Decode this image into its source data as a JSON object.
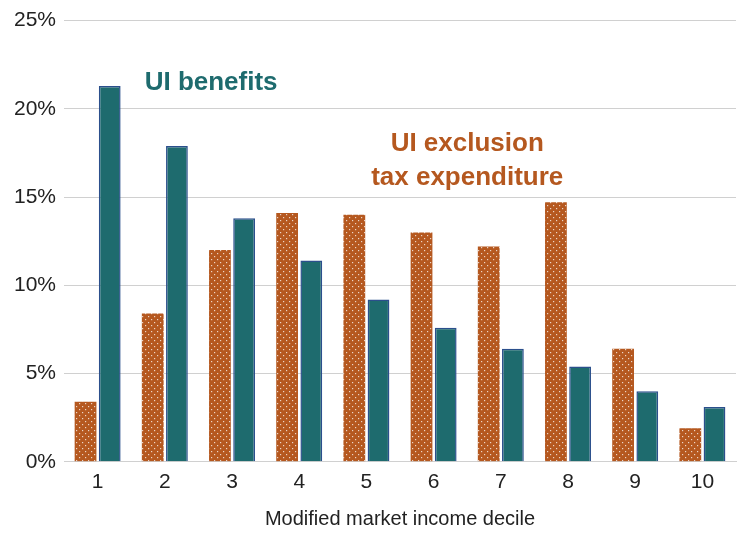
{
  "chart_data": {
    "type": "bar",
    "x_label": "Modified market income decile",
    "categories": [
      "1",
      "2",
      "3",
      "4",
      "5",
      "6",
      "7",
      "8",
      "9",
      "10"
    ],
    "series": [
      {
        "name": "UI exclusion tax expenditure",
        "color": "#b5581f",
        "marker": "dotted",
        "values": [
          3.4,
          8.4,
          12.0,
          14.1,
          14.0,
          13.0,
          12.2,
          14.7,
          6.4,
          1.9
        ]
      },
      {
        "name": "UI benefits",
        "color": "#1e6b6e",
        "values": [
          21.3,
          17.9,
          13.8,
          11.4,
          9.2,
          7.6,
          6.4,
          5.4,
          4.0,
          3.1
        ]
      }
    ],
    "ylim": [
      0,
      25
    ],
    "yticks": [
      {
        "value": 0,
        "label": "0%"
      },
      {
        "value": 5,
        "label": "5%"
      },
      {
        "value": 10,
        "label": "10%"
      },
      {
        "value": 15,
        "label": "15%"
      },
      {
        "value": 20,
        "label": "20%"
      },
      {
        "value": 25,
        "label": "25%"
      }
    ],
    "grid": true
  }
}
